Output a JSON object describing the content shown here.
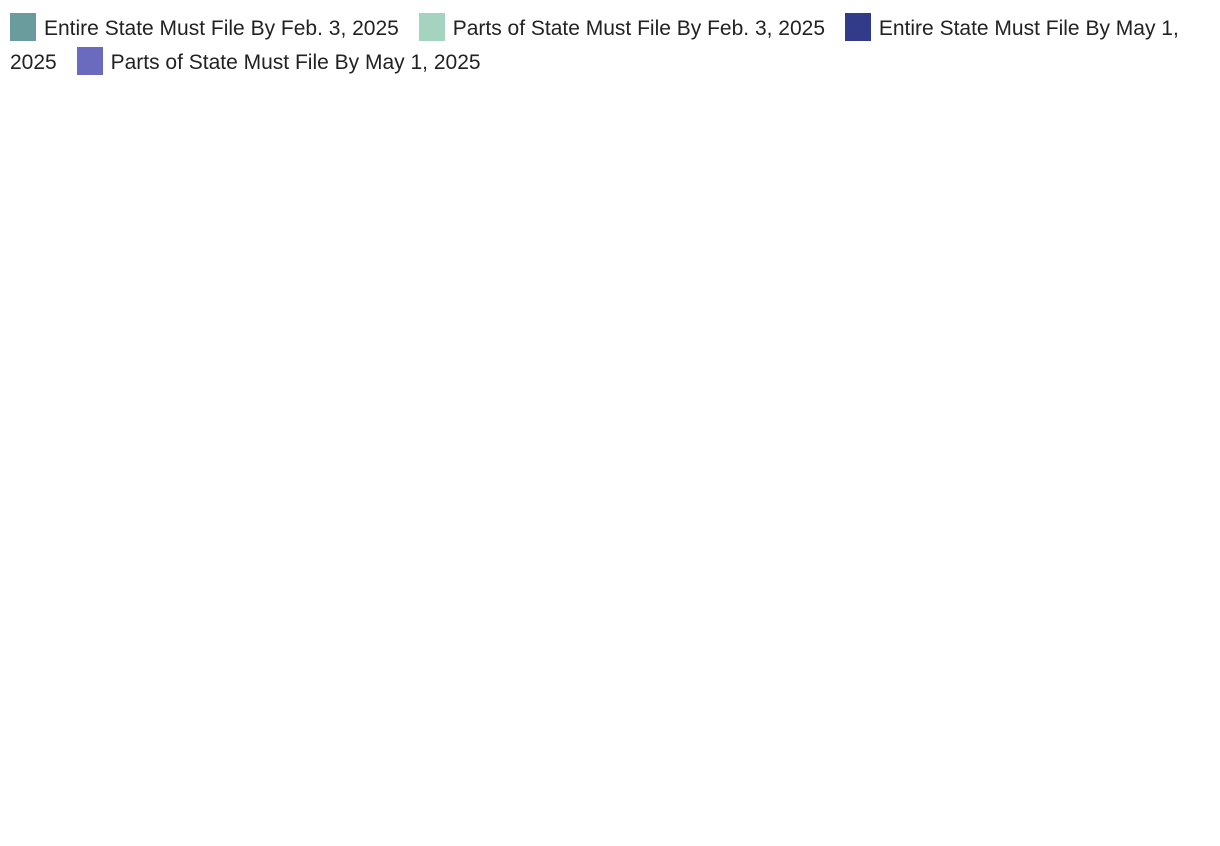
{
  "legend": [
    {
      "label": "Entire State Must File By Feb. 3, 2025",
      "color": "#6a9c9e"
    },
    {
      "label": "Parts of State Must File By Feb. 3, 2025",
      "color": "#a4d4c0"
    },
    {
      "label": "Entire State Must File By May 1, 2025",
      "color": "#313b8a"
    },
    {
      "label": "Parts of State Must File By May 1, 2025",
      "color": "#6a6abf"
    }
  ],
  "base_color": "#dddddd"
}
